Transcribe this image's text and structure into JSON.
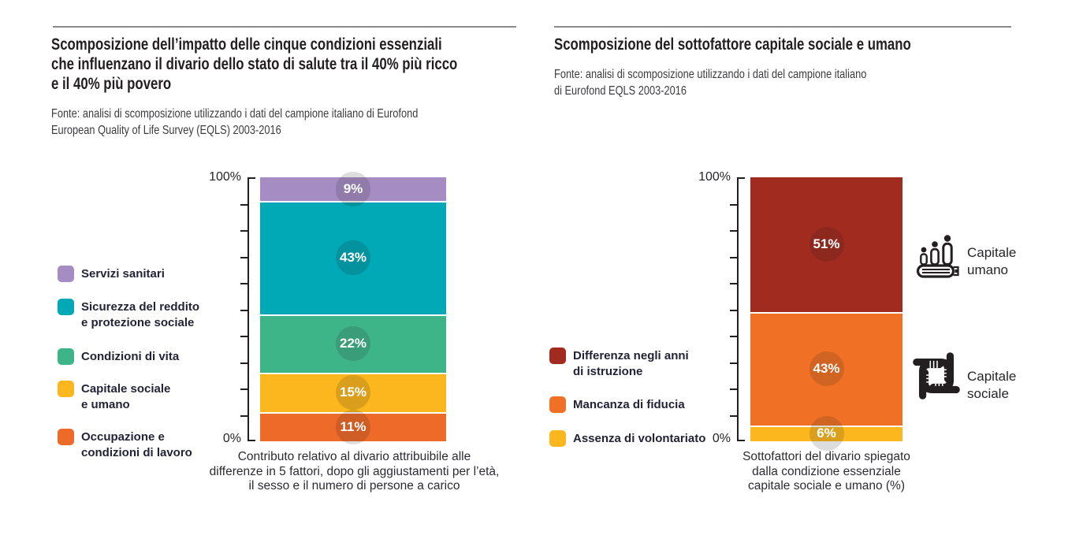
{
  "left": {
    "title_lines": [
      "Scomposizione dell’impatto delle cinque condizioni essenziali",
      "che influenzano il divario dello stato di salute tra il 40% più ricco",
      "e il 40% più povero"
    ],
    "source_lines": [
      "Fonte: analisi di scomposizione utilizzando i dati del campione italiano di Eurofond",
      "European Quality of Life Survey (EQLS) 2003-2016"
    ],
    "legend": [
      {
        "label_lines": [
          "Servizi sanitari"
        ]
      },
      {
        "label_lines": [
          "Sicurezza del reddito",
          "e protezione sociale"
        ]
      },
      {
        "label_lines": [
          "Condizioni di vita"
        ]
      },
      {
        "label_lines": [
          "Capitale sociale",
          "e umano"
        ]
      },
      {
        "label_lines": [
          "Occupazione e",
          "condizioni di lavoro"
        ]
      }
    ]
  },
  "right": {
    "title_lines": [
      "Scomposizione del sottofattore capitale sociale e umano"
    ],
    "source_lines": [
      "Fonte: analisi di scomposizione utilizzando i dati del campione italiano",
      "di Eurofond EQLS 2003-2016"
    ],
    "legend": [
      {
        "label_lines": [
          "Differenza negli anni",
          "di istruzione"
        ]
      },
      {
        "label_lines": [
          "Mancanza di fiducia"
        ]
      },
      {
        "label_lines": [
          "Assenza di volontariato"
        ]
      }
    ],
    "icons": [
      {
        "name": "capitale-umano",
        "label_lines": [
          "Capitale",
          "umano"
        ]
      },
      {
        "name": "capitale-sociale",
        "label_lines": [
          "Capitale",
          "sociale"
        ]
      }
    ]
  },
  "chart_data": [
    {
      "type": "bar",
      "stacked": true,
      "title": "Scomposizione dell’impatto delle cinque condizioni essenziali che influenzano il divario dello stato di salute tra il 40% più ricco e il 40% più povero",
      "categories": [
        ""
      ],
      "series": [
        {
          "name": "Servizi sanitari",
          "values": [
            9
          ],
          "color": "#a58cc3"
        },
        {
          "name": "Sicurezza del reddito e protezione sociale",
          "values": [
            43
          ],
          "color": "#00a9b5"
        },
        {
          "name": "Condizioni di vita",
          "values": [
            22
          ],
          "color": "#3eb489"
        },
        {
          "name": "Capitale sociale e umano",
          "values": [
            15
          ],
          "color": "#fcb61e"
        },
        {
          "name": "Occupazione e condizioni di lavoro",
          "values": [
            11
          ],
          "color": "#ee6a28"
        }
      ],
      "series_order": "top-to-bottom",
      "value_label_format": "{v}%",
      "ylim": [
        0,
        100
      ],
      "ytick_step": 10,
      "axis": {
        "max_label": "100%",
        "min_label": "0%"
      },
      "xlabel": "Contributo relativo al divario attribuibile alle differenze in 5 fattori, dopo gli aggiustamenti per l’età, il sesso e il numero di persone a carico",
      "xlabel_lines": [
        "Contributo relativo al divario attribuibile alle",
        "differenze in 5 fattori, dopo gli aggiustamenti per l’età,",
        "il sesso e il numero di persone a carico"
      ],
      "legend_position": "left",
      "grid": false
    },
    {
      "type": "bar",
      "stacked": true,
      "title": "Scomposizione del sottofattore capitale sociale e umano",
      "categories": [
        ""
      ],
      "series": [
        {
          "name": "Differenza negli anni di istruzione",
          "values": [
            51
          ],
          "color": "#a22b20"
        },
        {
          "name": "Mancanza di fiducia",
          "values": [
            43
          ],
          "color": "#f07125"
        },
        {
          "name": "Assenza di volontariato",
          "values": [
            6
          ],
          "color": "#fcb71e"
        }
      ],
      "series_order": "top-to-bottom",
      "value_label_format": "{v}%",
      "ylim": [
        0,
        100
      ],
      "ytick_step": 10,
      "axis": {
        "max_label": "100%",
        "min_label": "0%"
      },
      "xlabel": "Sottofattori del divario spiegato dalla condizione essenziale capitale sociale e umano (%)",
      "xlabel_lines": [
        "Sottofattori del divario spiegato",
        "dalla condizione essenziale",
        "capitale sociale e umano (%)"
      ],
      "group_labels": [
        {
          "icon": "capitale-umano",
          "text": "Capitale umano"
        },
        {
          "icon": "capitale-sociale",
          "text": "Capitale sociale"
        }
      ],
      "legend_position": "left",
      "grid": false
    }
  ],
  "colors": {
    "rule": "#8a8a8a",
    "axis": "#231f20",
    "title_text": "#231f20",
    "legend_text": "#232337",
    "bubble_overlay": "rgba(30,30,30,0.15)",
    "value_label_text": "#ffffff"
  }
}
